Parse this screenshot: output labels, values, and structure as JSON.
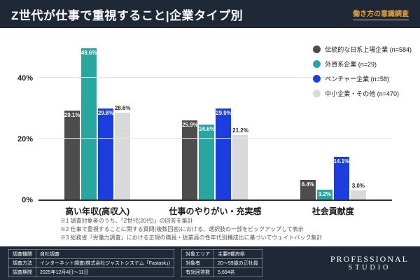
{
  "header": {
    "title": "Z世代が仕事で重視すること|企業タイプ別",
    "tagline": "働き方の意識調査"
  },
  "chart_data": {
    "type": "bar",
    "title": "Z世代が仕事で重視すること|企業タイプ別",
    "categories": [
      "高い年収(高収入)",
      "仕事のやりがい・充実感",
      "社会貢献度"
    ],
    "series": [
      {
        "name": "伝統的な日系上場企業 (n=584)",
        "color": "#4d4d4d",
        "label_color": "#ffffff",
        "label_position": "inside",
        "values": [
          29.1,
          25.9,
          6.4
        ]
      },
      {
        "name": "外資系企業 (n=29)",
        "color": "#2aa6a1",
        "label_color": "#ffffff",
        "label_position": "inside",
        "values": [
          49.6,
          24.6,
          3.2
        ]
      },
      {
        "name": "ベンチャー企業 (n=58)",
        "color": "#1c3ede",
        "label_color": "#ffffff",
        "label_position": "inside",
        "values": [
          29.8,
          29.9,
          14.1
        ]
      },
      {
        "name": "中小企業・その他 (n=470)",
        "color": "#d9d9d9",
        "label_color": "#222222",
        "label_position": "above",
        "values": [
          28.6,
          21.2,
          3.0
        ]
      }
    ],
    "value_suffix": "%",
    "yticks": [
      0,
      20,
      40
    ],
    "ytick_labels": [
      "0%",
      "20%",
      "40%"
    ],
    "ylim": [
      0,
      53
    ],
    "grid": true,
    "legend_position": "top-right"
  },
  "footnotes": [
    "※1 調査対象者のうち、「Z世代(20代)」の回答を集計",
    "※2 仕事で重視することに関する質問(複数回答)における、選択肢の一部をピックアップして表示",
    "※3 総務省「労働力調査」における正規の職員・従業員の性年代別構成比に基づいてウェイトバック集計"
  ],
  "footer": {
    "left_rows": [
      {
        "label": "調査機関",
        "value": "自社調査"
      },
      {
        "label": "調査方法",
        "value": "インターネット調査(株式会社ジャストシステム「Fastask」)"
      },
      {
        "label": "調査期間",
        "value": "2025年12月4日〜11日"
      }
    ],
    "right_rows": [
      {
        "label": "対象エリア",
        "value": "主要8都府県"
      },
      {
        "label": "対象者",
        "value": "20〜59歳の正社員"
      },
      {
        "label": "有効回答数",
        "value": "5,694名"
      }
    ],
    "logo_line1": "PROFESSIONAL",
    "logo_line2": "STUDIO"
  },
  "colors": {
    "background": "#ffffff",
    "header_bg": "#1e2836",
    "accent_orange": "#e8a33c",
    "axis_line": "#2f2f2f"
  }
}
